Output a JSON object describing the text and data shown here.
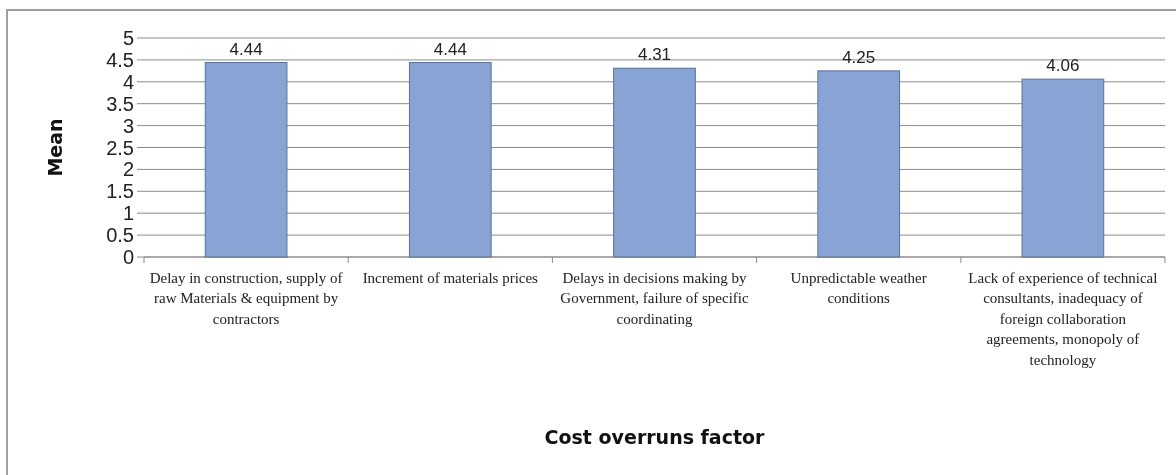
{
  "chart_data": {
    "type": "bar",
    "xlabel": "Cost overruns factor",
    "ylabel": "Mean",
    "categories": [
      "Delay in construction, supply of raw Materials & equipment by contractors",
      "Increment of materials prices",
      "Delays in decisions making by Government, failure of specific coordinating",
      "Unpredictable weather conditions",
      "Lack of experience of technical consultants, inadequacy of foreign collaboration agreements, monopoly of technology"
    ],
    "values": [
      4.44,
      4.44,
      4.31,
      4.25,
      4.06
    ],
    "color": "#88a4d4",
    "ylim": [
      0,
      5
    ],
    "yticks": [
      0,
      0.5,
      1,
      1.5,
      2,
      2.5,
      3,
      3.5,
      4,
      4.5,
      5
    ],
    "grid": "y",
    "data_labels": true
  }
}
